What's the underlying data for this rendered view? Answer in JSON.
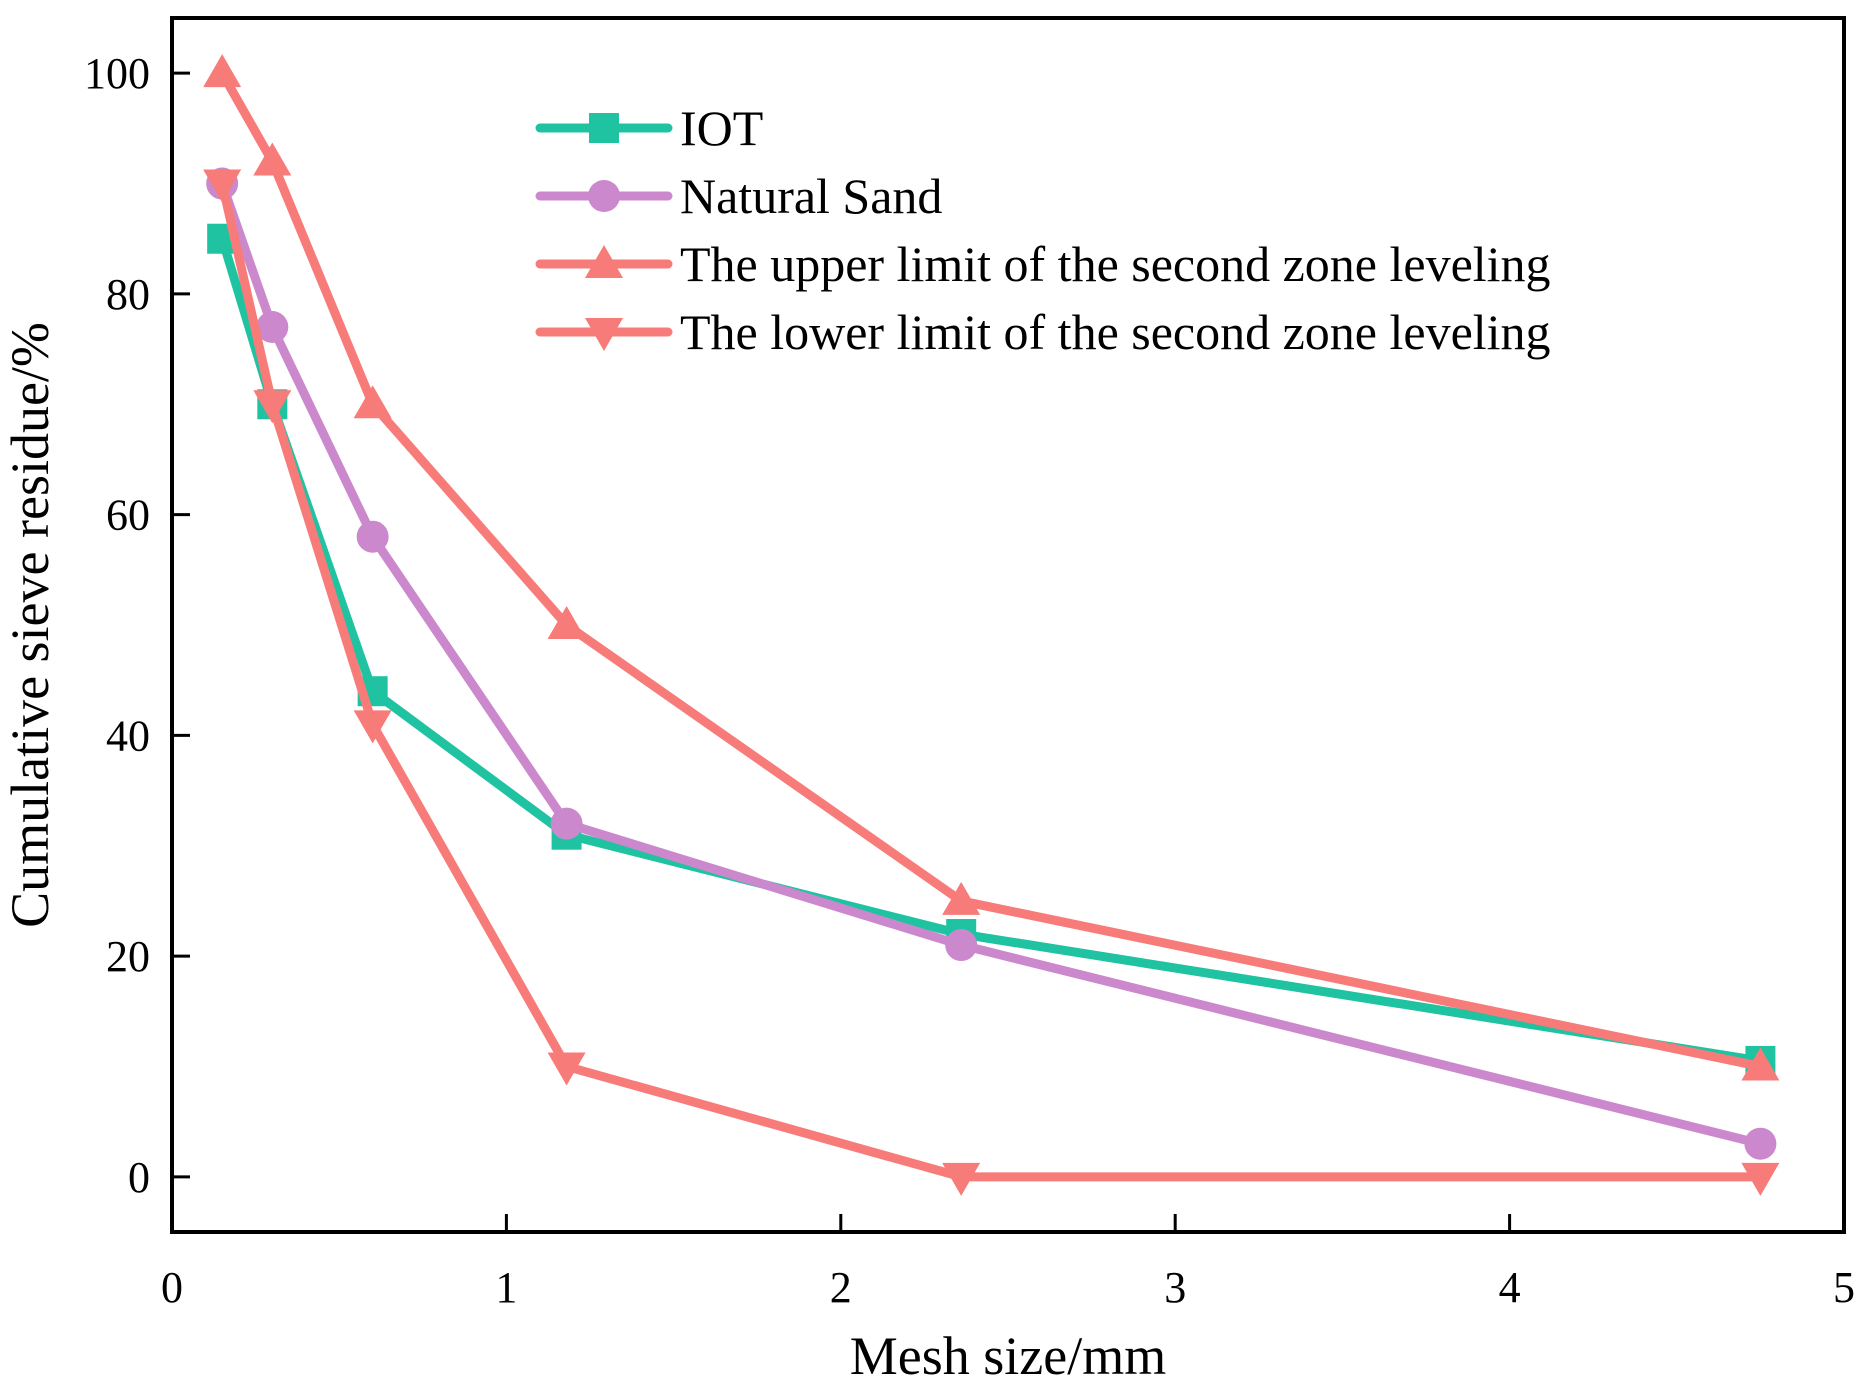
{
  "chart_data": {
    "type": "line",
    "title": "",
    "xlabel": "Mesh size/mm",
    "ylabel": "Cumulative sieve residue/%",
    "xlim": [
      0,
      5
    ],
    "ylim": [
      -5,
      105
    ],
    "xticks": [
      0,
      1,
      2,
      3,
      4,
      5
    ],
    "yticks": [
      0,
      20,
      40,
      60,
      80,
      100
    ],
    "xtick_labels": [
      "0",
      "1",
      "2",
      "3",
      "4",
      "5"
    ],
    "ytick_labels": [
      "0",
      "20",
      "40",
      "60",
      "80",
      "100"
    ],
    "grid": false,
    "legend_position": "top-center",
    "x": [
      0.15,
      0.3,
      0.6,
      1.18,
      2.36,
      4.75
    ],
    "series": [
      {
        "name": "IOT",
        "color": "#1fc3a1",
        "marker": "square",
        "values": [
          85,
          70,
          44,
          31,
          22,
          10.5
        ]
      },
      {
        "name": "Natural Sand",
        "color": "#cc88cc",
        "marker": "circle",
        "values": [
          90,
          77,
          58,
          32,
          21,
          3
        ]
      },
      {
        "name": "The upper limit of the second zone leveling",
        "color": "#f77b78",
        "marker": "triangle-up",
        "values": [
          100,
          92,
          70,
          50,
          25,
          10
        ]
      },
      {
        "name": "The lower limit of the second zone leveling",
        "color": "#f77b78",
        "marker": "triangle-down",
        "values": [
          90,
          70,
          41,
          10,
          0,
          0
        ]
      }
    ]
  }
}
